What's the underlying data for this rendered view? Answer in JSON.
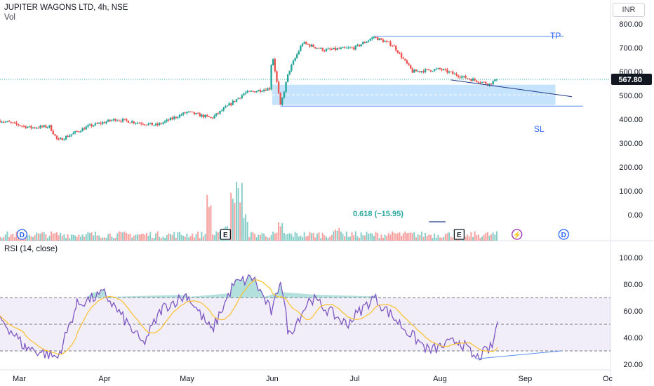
{
  "header": {
    "symbol_line": "JUPITER WAGONS LTD, 4h, NSE",
    "volume_label": "Vol",
    "currency": "INR"
  },
  "annotations": {
    "tp_label": "TP",
    "sl_label": "SL",
    "fib_text": "0.618 (−15.95)"
  },
  "event_markers": [
    {
      "letter": "D",
      "date": "2024-03-02"
    },
    {
      "letter": "E",
      "date": "2024-05-15"
    },
    {
      "letter": "E",
      "date": "2024-08-08"
    },
    {
      "letter": "⚡",
      "date": "2024-08-29"
    },
    {
      "letter": "D",
      "date": "2024-09-15"
    }
  ],
  "rsi": {
    "title": "RSI (14, close)",
    "upper_band": 70,
    "middle_band": 50,
    "lower_band": 30
  },
  "colors": {
    "up": "#26a69a",
    "down": "#ef5350",
    "rsi_line": "#7e57c2",
    "rsi_ma": "#fbc02d",
    "zone_fill": "#bbdefb",
    "trendline": "#5b8def"
  },
  "chart_data": [
    {
      "type": "candlestick",
      "title": "JUPITER WAGONS LTD, 4h, NSE",
      "y_axis_ticks": [
        "800.00",
        "700.00",
        "600.00",
        "500.00",
        "400.00",
        "300.00",
        "200.00",
        "100.00",
        "0.00"
      ],
      "ylim": [
        -20,
        830
      ],
      "x_axis_ticks": [
        "Mar",
        "Apr",
        "May",
        "Jun",
        "Jul",
        "Aug",
        "Sep",
        "Oc"
      ],
      "last_price": "567.80",
      "approx_close_path": [
        {
          "date": "2024-02-23",
          "close": 395
        },
        {
          "date": "2024-03-05",
          "close": 365
        },
        {
          "date": "2024-03-12",
          "close": 370
        },
        {
          "date": "2024-03-15",
          "close": 310
        },
        {
          "date": "2024-03-26",
          "close": 370
        },
        {
          "date": "2024-04-05",
          "close": 400
        },
        {
          "date": "2024-04-20",
          "close": 375
        },
        {
          "date": "2024-05-01",
          "close": 430
        },
        {
          "date": "2024-05-10",
          "close": 405
        },
        {
          "date": "2024-05-22",
          "close": 510
        },
        {
          "date": "2024-05-31",
          "close": 530
        },
        {
          "date": "2024-06-01",
          "close": 680
        },
        {
          "date": "2024-06-04",
          "close": 455
        },
        {
          "date": "2024-06-07",
          "close": 600
        },
        {
          "date": "2024-06-12",
          "close": 720
        },
        {
          "date": "2024-06-20",
          "close": 690
        },
        {
          "date": "2024-07-01",
          "close": 700
        },
        {
          "date": "2024-07-08",
          "close": 745
        },
        {
          "date": "2024-07-15",
          "close": 710
        },
        {
          "date": "2024-07-22",
          "close": 600
        },
        {
          "date": "2024-08-01",
          "close": 610
        },
        {
          "date": "2024-08-10",
          "close": 575
        },
        {
          "date": "2024-08-19",
          "close": 548
        },
        {
          "date": "2024-08-22",
          "close": 567.8
        }
      ],
      "target_price": 748,
      "stop_loss_price": 455,
      "demand_zone": {
        "from": 460,
        "to": 545
      },
      "volume": {
        "series_name": "Vol",
        "approx_values_relative": [
          {
            "date": "2024-03-25",
            "value": 0.1
          },
          {
            "date": "2024-05-09",
            "value": 1.1
          },
          {
            "date": "2024-05-15",
            "value": 0.4
          },
          {
            "date": "2024-05-18",
            "value": 1.3
          },
          {
            "date": "2024-05-20",
            "value": 1.4
          },
          {
            "date": "2024-05-22",
            "value": 0.7
          },
          {
            "date": "2024-06-04",
            "value": 0.45
          },
          {
            "date": "2024-06-25",
            "value": 0.3
          },
          {
            "date": "2024-07-15",
            "value": 0.2
          },
          {
            "date": "2024-08-10",
            "value": 0.1
          }
        ]
      }
    },
    {
      "type": "line",
      "title": "RSI (14, close)",
      "y_axis_ticks": [
        "100.00",
        "80.00",
        "60.00",
        "40.00",
        "20.00"
      ],
      "ylim": [
        17,
        108
      ],
      "series": [
        {
          "values_approx": [
            {
              "date": "2024-02-23",
              "rsi": 55
            },
            {
              "date": "2024-03-03",
              "rsi": 33
            },
            {
              "date": "2024-03-15",
              "rsi": 25
            },
            {
              "date": "2024-03-22",
              "rsi": 65
            },
            {
              "date": "2024-04-01",
              "rsi": 73
            },
            {
              "date": "2024-04-15",
              "rsi": 35
            },
            {
              "date": "2024-04-22",
              "rsi": 62
            },
            {
              "date": "2024-05-01",
              "rsi": 72
            },
            {
              "date": "2024-05-10",
              "rsi": 45
            },
            {
              "date": "2024-05-18",
              "rsi": 80
            },
            {
              "date": "2024-05-25",
              "rsi": 85
            },
            {
              "date": "2024-06-01",
              "rsi": 58
            },
            {
              "date": "2024-06-04",
              "rsi": 85
            },
            {
              "date": "2024-06-07",
              "rsi": 42
            },
            {
              "date": "2024-06-15",
              "rsi": 70
            },
            {
              "date": "2024-06-28",
              "rsi": 50
            },
            {
              "date": "2024-07-08",
              "rsi": 70
            },
            {
              "date": "2024-07-20",
              "rsi": 45
            },
            {
              "date": "2024-07-28",
              "rsi": 30
            },
            {
              "date": "2024-08-08",
              "rsi": 38
            },
            {
              "date": "2024-08-14",
              "rsi": 24
            },
            {
              "date": "2024-08-20",
              "rsi": 33
            },
            {
              "date": "2024-08-22",
              "rsi": 52
            }
          ]
        }
      ],
      "bands": [
        30,
        50,
        70
      ]
    }
  ]
}
